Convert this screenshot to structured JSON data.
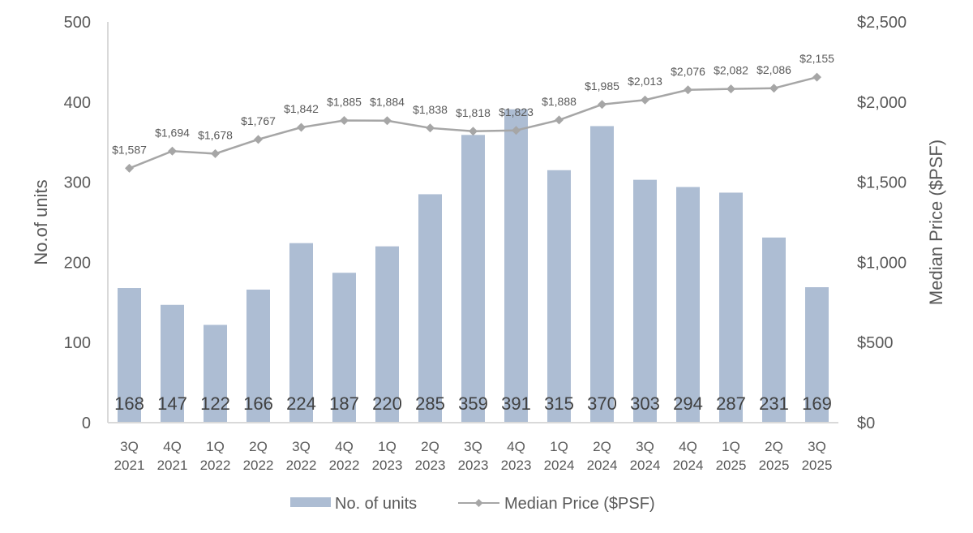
{
  "chart_data": {
    "type": "bar+line",
    "title": "",
    "categories": [
      [
        "3Q",
        "2021"
      ],
      [
        "4Q",
        "2021"
      ],
      [
        "1Q",
        "2022"
      ],
      [
        "2Q",
        "2022"
      ],
      [
        "3Q",
        "2022"
      ],
      [
        "4Q",
        "2022"
      ],
      [
        "1Q",
        "2023"
      ],
      [
        "2Q",
        "2023"
      ],
      [
        "3Q",
        "2023"
      ],
      [
        "4Q",
        "2023"
      ],
      [
        "1Q",
        "2024"
      ],
      [
        "2Q",
        "2024"
      ],
      [
        "3Q",
        "2024"
      ],
      [
        "4Q",
        "2024"
      ],
      [
        "1Q",
        "2025"
      ],
      [
        "2Q",
        "2025"
      ],
      [
        "3Q",
        "2025"
      ]
    ],
    "series": [
      {
        "name": "No. of units",
        "type": "bar",
        "axis": "left",
        "color": "#adbdd3",
        "values": [
          168,
          147,
          122,
          166,
          224,
          187,
          220,
          285,
          359,
          391,
          315,
          370,
          303,
          294,
          287,
          231,
          169
        ],
        "labels": [
          "168",
          "147",
          "122",
          "166",
          "224",
          "187",
          "220",
          "285",
          "359",
          "391",
          "315",
          "370",
          "303",
          "294",
          "287",
          "231",
          "169"
        ]
      },
      {
        "name": "Median Price ($PSF)",
        "type": "line",
        "axis": "right",
        "color": "#a6a6a6",
        "marker": "diamond",
        "values": [
          1587,
          1694,
          1678,
          1767,
          1842,
          1885,
          1884,
          1838,
          1818,
          1823,
          1888,
          1985,
          2013,
          2076,
          2082,
          2086,
          2155
        ],
        "labels": [
          "$1,587",
          "$1,694",
          "$1,678",
          "$1,767",
          "$1,842",
          "$1,885",
          "$1,884",
          "$1,838",
          "$1,818",
          "$1,823",
          "$1,888",
          "$1,985",
          "$2,013",
          "$2,076",
          "$2,082",
          "$2,086",
          "$2,155"
        ]
      }
    ],
    "ylabel": "No.of units",
    "ylim": [
      0,
      500
    ],
    "yticks": [
      0,
      100,
      200,
      300,
      400,
      500
    ],
    "ytick_labels": [
      "0",
      "100",
      "200",
      "300",
      "400",
      "500"
    ],
    "y2label": "Median Price ($PSF)",
    "y2lim": [
      0,
      2500
    ],
    "y2ticks": [
      0,
      500,
      1000,
      1500,
      2000,
      2500
    ],
    "y2tick_labels": [
      "$0",
      "$500",
      "$1,000",
      "$1,500",
      "$2,000",
      "$2,500"
    ],
    "xlabel": "",
    "grid": false,
    "legend": {
      "placement": "bottom-center",
      "entries": [
        "No. of units",
        "Median Price ($PSF)"
      ]
    }
  }
}
